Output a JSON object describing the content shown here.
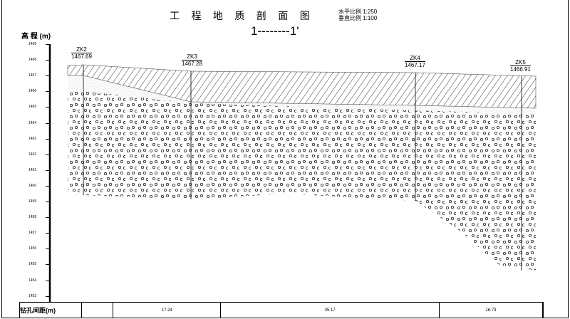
{
  "title": "工 程 地 质 剖 面 图",
  "scale": {
    "horizontal": "水平比例 1:250",
    "vertical": "垂直比例 1:100"
  },
  "section": "1--------1'",
  "y_axis": {
    "label": "高 程 (m)",
    "ticks": [
      "1469",
      "1468",
      "1467",
      "1466",
      "1465",
      "1464",
      "1463",
      "1462",
      "1461",
      "1460",
      "1459",
      "1458",
      "1457",
      "1456",
      "1455",
      "1454",
      "1453"
    ]
  },
  "boreholes": [
    {
      "id": "ZK2",
      "elevation": "1467.69"
    },
    {
      "id": "ZK3",
      "elevation": "1467.28"
    },
    {
      "id": "ZK4",
      "elevation": "1467.17"
    },
    {
      "id": "ZK5",
      "elevation": "1466.91"
    }
  ],
  "spacing_table": {
    "label": "钻孔间距(m)",
    "values": [
      "",
      "17.24",
      "35.17",
      "16.73",
      ""
    ]
  }
}
